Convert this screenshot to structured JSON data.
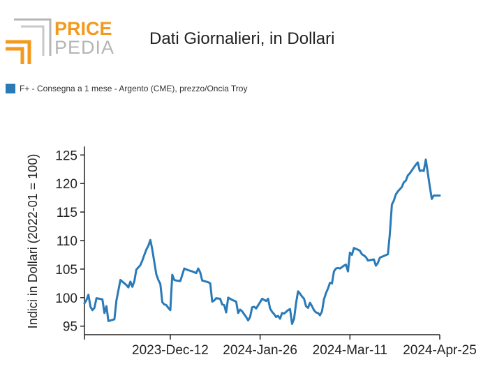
{
  "logo": {
    "word1": "PRICE",
    "word2": "PEDIA"
  },
  "header": {
    "title": "Dati Giornalieri, in Dollari"
  },
  "colors": {
    "series": "#2a7ab8",
    "logo_orange": "#f39a1e",
    "logo_gray": "#b5b5b5",
    "axis": "#222222"
  },
  "chart_data": {
    "type": "line",
    "title": "Dati Giornalieri, in Dollari",
    "ylabel": "Indici in Dollari (2022-01 = 100)",
    "xlabel": "",
    "ylim": [
      93.5,
      126.5
    ],
    "yticks": [
      95,
      100,
      105,
      110,
      115,
      120,
      125
    ],
    "xlim": [
      "2023-10-30",
      "2024-04-25"
    ],
    "xticks": [
      {
        "date": "2023-10-30",
        "label": ""
      },
      {
        "date": "2023-12-12",
        "label": "2023-Dec-12"
      },
      {
        "date": "2024-01-26",
        "label": "2024-Jan-26"
      },
      {
        "date": "2024-03-11",
        "label": "2024-Mar-11"
      },
      {
        "date": "2024-04-25",
        "label": "2024-Apr-25"
      }
    ],
    "grid": false,
    "legend_position": "top-left",
    "series": [
      {
        "name": "F+ - Consegna a 1 mese - Argento (CME), prezzo/Oncia Troy",
        "points": [
          [
            "2023-10-30",
            99.0
          ],
          [
            "2023-10-31",
            99.6
          ],
          [
            "2023-11-01",
            100.5
          ],
          [
            "2023-11-02",
            98.4
          ],
          [
            "2023-11-03",
            97.8
          ],
          [
            "2023-11-04",
            98.2
          ],
          [
            "2023-11-05",
            99.9
          ],
          [
            "2023-11-08",
            99.7
          ],
          [
            "2023-11-09",
            97.3
          ],
          [
            "2023-11-10",
            98.5
          ],
          [
            "2023-11-11",
            95.9
          ],
          [
            "2023-11-14",
            96.2
          ],
          [
            "2023-11-15",
            99.5
          ],
          [
            "2023-11-17",
            103.1
          ],
          [
            "2023-11-20",
            102.2
          ],
          [
            "2023-11-21",
            101.8
          ],
          [
            "2023-11-22",
            102.8
          ],
          [
            "2023-11-23",
            101.9
          ],
          [
            "2023-11-24",
            102.9
          ],
          [
            "2023-11-25",
            104.9
          ],
          [
            "2023-11-27",
            105.7
          ],
          [
            "2023-11-28",
            106.5
          ],
          [
            "2023-11-29",
            107.5
          ],
          [
            "2023-11-30",
            108.4
          ],
          [
            "2023-12-01",
            109.1
          ],
          [
            "2023-12-02",
            110.1
          ],
          [
            "2023-12-03",
            108.4
          ],
          [
            "2023-12-04",
            106.2
          ],
          [
            "2023-12-05",
            104.1
          ],
          [
            "2023-12-06",
            103.1
          ],
          [
            "2023-12-07",
            102.4
          ],
          [
            "2023-12-08",
            99.2
          ],
          [
            "2023-12-09",
            98.8
          ],
          [
            "2023-12-10",
            98.7
          ],
          [
            "2023-12-11",
            98.2
          ],
          [
            "2023-12-12",
            97.8
          ],
          [
            "2023-12-13",
            104.0
          ],
          [
            "2023-12-14",
            103.1
          ],
          [
            "2023-12-15",
            103.0
          ],
          [
            "2023-12-17",
            102.9
          ],
          [
            "2023-12-19",
            105.1
          ],
          [
            "2023-12-21",
            104.8
          ],
          [
            "2023-12-23",
            104.6
          ],
          [
            "2023-12-25",
            104.3
          ],
          [
            "2023-12-26",
            105.1
          ],
          [
            "2023-12-27",
            104.4
          ],
          [
            "2023-12-28",
            103.0
          ],
          [
            "2023-12-31",
            102.7
          ],
          [
            "2024-01-01",
            102.5
          ],
          [
            "2024-01-02",
            99.3
          ],
          [
            "2024-01-03",
            99.5
          ],
          [
            "2024-01-04",
            99.9
          ],
          [
            "2024-01-06",
            99.8
          ],
          [
            "2024-01-07",
            98.8
          ],
          [
            "2024-01-08",
            98.7
          ],
          [
            "2024-01-09",
            97.4
          ],
          [
            "2024-01-10",
            100.0
          ],
          [
            "2024-01-12",
            99.6
          ],
          [
            "2024-01-14",
            99.3
          ],
          [
            "2024-01-15",
            97.3
          ],
          [
            "2024-01-16",
            97.9
          ],
          [
            "2024-01-17",
            97.6
          ],
          [
            "2024-01-19",
            96.6
          ],
          [
            "2024-01-20",
            96.0
          ],
          [
            "2024-01-21",
            96.6
          ],
          [
            "2024-01-22",
            98.3
          ],
          [
            "2024-01-23",
            98.4
          ],
          [
            "2024-01-24",
            98.1
          ],
          [
            "2024-01-26",
            99.2
          ],
          [
            "2024-01-27",
            99.8
          ],
          [
            "2024-01-28",
            99.6
          ],
          [
            "2024-01-29",
            99.4
          ],
          [
            "2024-01-30",
            99.8
          ],
          [
            "2024-01-31",
            98.1
          ],
          [
            "2024-02-01",
            97.5
          ],
          [
            "2024-02-02",
            97.1
          ],
          [
            "2024-02-03",
            96.6
          ],
          [
            "2024-02-04",
            96.8
          ],
          [
            "2024-02-05",
            96.3
          ],
          [
            "2024-02-06",
            97.3
          ],
          [
            "2024-02-07",
            97.2
          ],
          [
            "2024-02-08",
            97.5
          ],
          [
            "2024-02-09",
            97.8
          ],
          [
            "2024-02-10",
            98.0
          ],
          [
            "2024-02-11",
            95.4
          ],
          [
            "2024-02-12",
            96.3
          ],
          [
            "2024-02-13",
            99.0
          ],
          [
            "2024-02-14",
            101.1
          ],
          [
            "2024-02-15",
            100.7
          ],
          [
            "2024-02-16",
            100.2
          ],
          [
            "2024-02-17",
            99.8
          ],
          [
            "2024-02-18",
            98.5
          ],
          [
            "2024-02-19",
            98.2
          ],
          [
            "2024-02-20",
            99.1
          ],
          [
            "2024-02-21",
            98.5
          ],
          [
            "2024-02-22",
            97.8
          ],
          [
            "2024-02-23",
            97.4
          ],
          [
            "2024-02-24",
            97.3
          ],
          [
            "2024-02-25",
            96.9
          ],
          [
            "2024-02-26",
            97.6
          ],
          [
            "2024-02-27",
            99.7
          ],
          [
            "2024-02-28",
            100.8
          ],
          [
            "2024-02-29",
            101.6
          ],
          [
            "2024-03-01",
            102.6
          ],
          [
            "2024-03-02",
            102.5
          ],
          [
            "2024-03-03",
            104.6
          ],
          [
            "2024-03-04",
            105.1
          ],
          [
            "2024-03-05",
            105.2
          ],
          [
            "2024-03-06",
            105.1
          ],
          [
            "2024-03-08",
            105.6
          ],
          [
            "2024-03-09",
            105.8
          ],
          [
            "2024-03-10",
            104.6
          ],
          [
            "2024-03-11",
            107.9
          ],
          [
            "2024-03-12",
            107.5
          ],
          [
            "2024-03-13",
            108.7
          ],
          [
            "2024-03-15",
            108.4
          ],
          [
            "2024-03-16",
            108.2
          ],
          [
            "2024-03-17",
            107.6
          ],
          [
            "2024-03-18",
            107.4
          ],
          [
            "2024-03-19",
            107.1
          ],
          [
            "2024-03-20",
            106.5
          ],
          [
            "2024-03-23",
            106.7
          ],
          [
            "2024-03-24",
            105.6
          ],
          [
            "2024-03-25",
            106.1
          ],
          [
            "2024-03-26",
            107.0
          ],
          [
            "2024-03-30",
            107.6
          ],
          [
            "2024-03-31",
            111.2
          ],
          [
            "2024-04-01",
            116.3
          ],
          [
            "2024-04-02",
            117.0
          ],
          [
            "2024-04-03",
            118.1
          ],
          [
            "2024-04-04",
            118.6
          ],
          [
            "2024-04-05",
            119.0
          ],
          [
            "2024-04-06",
            119.4
          ],
          [
            "2024-04-07",
            120.2
          ],
          [
            "2024-04-08",
            120.5
          ],
          [
            "2024-04-09",
            121.4
          ],
          [
            "2024-04-10",
            121.8
          ],
          [
            "2024-04-11",
            122.3
          ],
          [
            "2024-04-12",
            122.8
          ],
          [
            "2024-04-13",
            123.3
          ],
          [
            "2024-04-14",
            123.7
          ],
          [
            "2024-04-15",
            122.2
          ],
          [
            "2024-04-16",
            122.3
          ],
          [
            "2024-04-17",
            122.2
          ],
          [
            "2024-04-18",
            124.2
          ],
          [
            "2024-04-19",
            121.9
          ],
          [
            "2024-04-20",
            119.5
          ],
          [
            "2024-04-21",
            117.3
          ],
          [
            "2024-04-22",
            117.9
          ],
          [
            "2024-04-25",
            117.9
          ]
        ]
      }
    ]
  }
}
